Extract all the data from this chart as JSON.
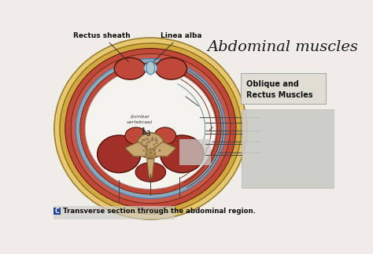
{
  "title": "Abdominal muscles",
  "subtitle": "Transverse section through the abdominal region.",
  "label_rectus_sheath": "Rectus sheath",
  "label_linea_alba": "Linea alba",
  "label_oblique_box": "Oblique and\nRectus Muscles",
  "label_lumbar": "lumbar\nvertebrae",
  "label_L3": "L",
  "bg_color": "#f0ede8",
  "outer_skin_color": "#e8c870",
  "fat_yellow_color": "#d4a840",
  "muscle_red_color": "#c04838",
  "muscle_dark_color": "#a03028",
  "fascia_blue_color": "#8aaabb",
  "interior_bg": "#f5f3ee",
  "vertebra_tan": "#c8a870",
  "vertebra_light": "#ddc898",
  "box_bg": "#e0ddd5",
  "box_border": "#aaaaaa",
  "line_color": "#444444",
  "blur_color": "#c8c8c4",
  "caption_box_color": "#224499",
  "caption_text_color": "#111111"
}
